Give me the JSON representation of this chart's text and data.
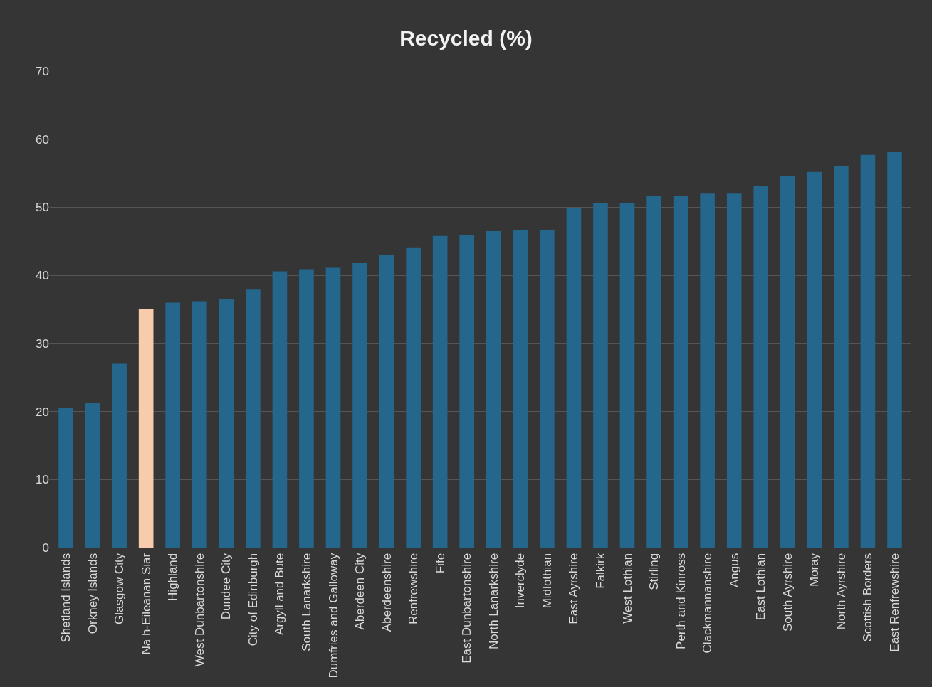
{
  "chart_data": {
    "type": "bar",
    "title": "Recycled (%)",
    "categories": [
      "Shetland Islands",
      "Orkney Islands",
      "Glasgow City",
      "Na h-Eileanan Siar",
      "Highland",
      "West Dunbartonshire",
      "Dundee City",
      "City of Edinburgh",
      "Argyll and Bute",
      "South Lanarkshire",
      "Dumfries and Galloway",
      "Aberdeen City",
      "Aberdeenshire",
      "Renfrewshire",
      "Fife",
      "East Dunbartonshire",
      "North Lanarkshire",
      "Inverclyde",
      "Midlothian",
      "East Ayrshire",
      "Falkirk",
      "West Lothian",
      "Stirling",
      "Perth and Kinross",
      "Clackmannanshire",
      "Angus",
      "East Lothian",
      "South Ayrshire",
      "Moray",
      "North Ayrshire",
      "Scottish Borders",
      "East Renfrewshire"
    ],
    "values": [
      20.5,
      21.2,
      27.0,
      35.1,
      36.0,
      36.2,
      36.5,
      37.9,
      40.6,
      40.9,
      41.1,
      41.8,
      43.0,
      44.0,
      45.8,
      45.9,
      46.5,
      46.7,
      46.7,
      49.9,
      50.6,
      50.6,
      51.6,
      51.7,
      52.0,
      52.0,
      53.1,
      54.6,
      55.2,
      56.0,
      57.7,
      58.1
    ],
    "colors": [
      "#24668c",
      "#24668c",
      "#24668c",
      "#f8cbad",
      "#24668c",
      "#24668c",
      "#24668c",
      "#24668c",
      "#24668c",
      "#24668c",
      "#24668c",
      "#24668c",
      "#24668c",
      "#24668c",
      "#24668c",
      "#24668c",
      "#24668c",
      "#24668c",
      "#24668c",
      "#24668c",
      "#24668c",
      "#24668c",
      "#24668c",
      "#24668c",
      "#24668c",
      "#24668c",
      "#24668c",
      "#24668c",
      "#24668c",
      "#24668c",
      "#24668c",
      "#24668c"
    ],
    "ylim": [
      0,
      70
    ],
    "yticks": [
      0,
      10,
      20,
      30,
      40,
      50,
      60,
      70
    ],
    "grid": "y"
  }
}
